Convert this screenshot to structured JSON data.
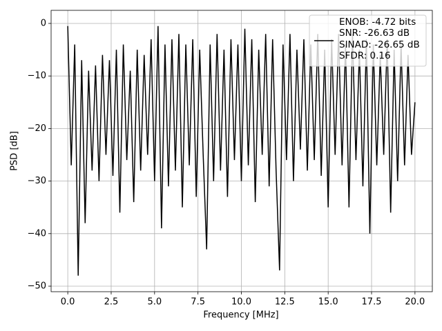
{
  "chart_data": {
    "type": "line",
    "xlabel": "Frequency [MHz]",
    "ylabel": "PSD [dB]",
    "x": [
      0.0,
      0.2,
      0.4,
      0.6,
      0.8,
      1.0,
      1.2,
      1.4,
      1.6,
      1.8,
      2.0,
      2.2,
      2.4,
      2.6,
      2.8,
      3.0,
      3.2,
      3.4,
      3.6,
      3.8,
      4.0,
      4.2,
      4.4,
      4.6,
      4.8,
      5.0,
      5.2,
      5.4,
      5.6,
      5.8,
      6.0,
      6.2,
      6.4,
      6.6,
      6.8,
      7.0,
      7.2,
      7.4,
      7.6,
      7.8,
      8.0,
      8.2,
      8.4,
      8.6,
      8.8,
      9.0,
      9.2,
      9.4,
      9.6,
      9.8,
      10.0,
      10.2,
      10.4,
      10.6,
      10.8,
      11.0,
      11.2,
      11.4,
      11.6,
      11.8,
      12.0,
      12.2,
      12.4,
      12.6,
      12.8,
      13.0,
      13.2,
      13.4,
      13.6,
      13.8,
      14.0,
      14.2,
      14.4,
      14.6,
      14.8,
      15.0,
      15.2,
      15.4,
      15.6,
      15.8,
      16.0,
      16.2,
      16.4,
      16.6,
      16.8,
      17.0,
      17.2,
      17.4,
      17.6,
      17.8,
      18.0,
      18.2,
      18.4,
      18.6,
      18.8,
      19.0,
      19.2,
      19.4,
      19.6,
      19.8,
      20.0
    ],
    "series": [
      {
        "name": "ENOB: -4.72 bits\nSNR: -26.63 dB\nSINAD: -26.65 dB\nSFDR: 0.16",
        "color": "#000000",
        "values": [
          -0.5,
          -27,
          -4,
          -48,
          -7,
          -38,
          -9,
          -28,
          -8,
          -30,
          -6,
          -25,
          -7,
          -29,
          -5,
          -36,
          -4,
          -26,
          -9,
          -34,
          -5,
          -28,
          -6,
          -25,
          -3,
          -30,
          -0.5,
          -39,
          -4,
          -31,
          -3,
          -28,
          -2,
          -35,
          -4,
          -27,
          -3,
          -33,
          -5,
          -25,
          -43,
          -4,
          -30,
          -2,
          -28,
          -5,
          -33,
          -3,
          -26,
          -4,
          -30,
          -1,
          -27,
          -3,
          -34,
          -5,
          -25,
          -2,
          -31,
          -3,
          -28,
          -47,
          -4,
          -26,
          -2,
          -30,
          -5,
          -24,
          -3,
          -28,
          -4,
          -26,
          -2,
          -29,
          -5,
          -35,
          -3,
          -25,
          -2,
          -27,
          -4,
          -35,
          -2,
          -26,
          -5,
          -31,
          -3,
          -40,
          -4,
          -27,
          -6,
          -25,
          -3,
          -36,
          -5,
          -30,
          -4,
          -27,
          -6,
          -25,
          -15
        ]
      }
    ],
    "xlim": [
      -0.96,
      21.0
    ],
    "ylim": [
      -51.05,
      2.49
    ],
    "xticks": [
      {
        "value": 0,
        "label": "0.0"
      },
      2.5,
      {
        "value": 5,
        "label": "5.0"
      },
      7.5,
      {
        "value": 10,
        "label": "10.0"
      },
      12.5,
      {
        "value": 15,
        "label": "15.0"
      },
      17.5,
      {
        "value": 20,
        "label": "20.0"
      }
    ],
    "yticks": [
      0,
      {
        "value": -10,
        "label": "−10"
      },
      {
        "value": -20,
        "label": "−20"
      },
      {
        "value": -30,
        "label": "−30"
      },
      {
        "value": -40,
        "label": "−40"
      },
      {
        "value": -50,
        "label": "−50"
      }
    ],
    "grid": true,
    "legend": "upper right"
  }
}
